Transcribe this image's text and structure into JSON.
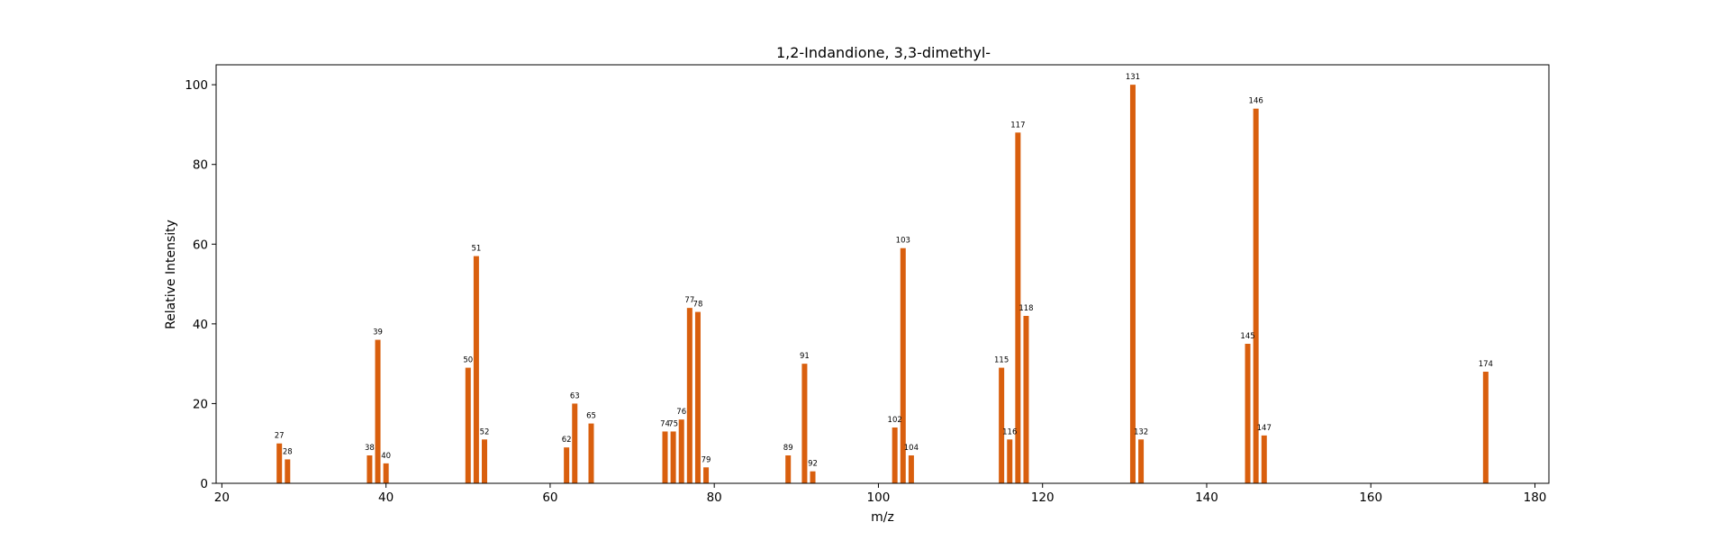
{
  "chart_data": {
    "type": "bar",
    "title": "1,2-Indandione, 3,3-dimethyl-",
    "xlabel": "m/z",
    "ylabel": "Relative Intensity",
    "xlim": [
      19.3,
      181.7
    ],
    "ylim": [
      0,
      105
    ],
    "xticks": [
      20,
      40,
      60,
      80,
      100,
      120,
      140,
      160,
      180
    ],
    "yticks": [
      0,
      20,
      40,
      60,
      80,
      100
    ],
    "grid": false,
    "bar_color": "#d95f0e",
    "peaks": [
      {
        "mz": 27,
        "intensity": 10,
        "label": "27"
      },
      {
        "mz": 28,
        "intensity": 6,
        "label": "28"
      },
      {
        "mz": 38,
        "intensity": 7,
        "label": "38"
      },
      {
        "mz": 39,
        "intensity": 36,
        "label": "39"
      },
      {
        "mz": 40,
        "intensity": 5,
        "label": "40"
      },
      {
        "mz": 50,
        "intensity": 29,
        "label": "50"
      },
      {
        "mz": 51,
        "intensity": 57,
        "label": "51"
      },
      {
        "mz": 52,
        "intensity": 11,
        "label": "52"
      },
      {
        "mz": 62,
        "intensity": 9,
        "label": "62"
      },
      {
        "mz": 63,
        "intensity": 20,
        "label": "63"
      },
      {
        "mz": 65,
        "intensity": 15,
        "label": "65"
      },
      {
        "mz": 74,
        "intensity": 13,
        "label": "74"
      },
      {
        "mz": 75,
        "intensity": 13,
        "label": "75"
      },
      {
        "mz": 76,
        "intensity": 16,
        "label": "76"
      },
      {
        "mz": 77,
        "intensity": 44,
        "label": "77"
      },
      {
        "mz": 78,
        "intensity": 43,
        "label": "78"
      },
      {
        "mz": 79,
        "intensity": 4,
        "label": "79"
      },
      {
        "mz": 89,
        "intensity": 7,
        "label": "89"
      },
      {
        "mz": 91,
        "intensity": 30,
        "label": "91"
      },
      {
        "mz": 92,
        "intensity": 3,
        "label": "92"
      },
      {
        "mz": 102,
        "intensity": 14,
        "label": "102"
      },
      {
        "mz": 103,
        "intensity": 59,
        "label": "103"
      },
      {
        "mz": 104,
        "intensity": 7,
        "label": "104"
      },
      {
        "mz": 115,
        "intensity": 29,
        "label": "115"
      },
      {
        "mz": 116,
        "intensity": 11,
        "label": "116"
      },
      {
        "mz": 117,
        "intensity": 88,
        "label": "117"
      },
      {
        "mz": 118,
        "intensity": 42,
        "label": "118"
      },
      {
        "mz": 131,
        "intensity": 100,
        "label": "131"
      },
      {
        "mz": 132,
        "intensity": 11,
        "label": "132"
      },
      {
        "mz": 145,
        "intensity": 35,
        "label": "145"
      },
      {
        "mz": 146,
        "intensity": 94,
        "label": "146"
      },
      {
        "mz": 147,
        "intensity": 12,
        "label": "147"
      },
      {
        "mz": 174,
        "intensity": 28,
        "label": "174"
      }
    ]
  }
}
